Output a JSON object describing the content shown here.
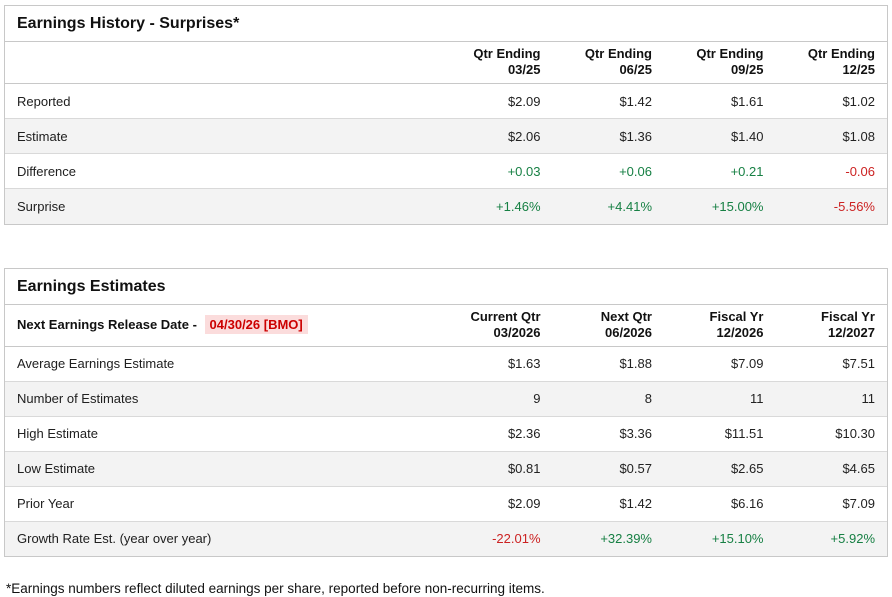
{
  "colors": {
    "positive_green": "#178044",
    "negative_red": "#cc2222",
    "release_date_red": "#cc0000",
    "release_date_bg": "#fbdcdc",
    "striped_row_bg": "#f3f3f3",
    "table_border": "#c8c8c8"
  },
  "earnings_history": {
    "title": "Earnings History - Surprises*",
    "columns": [
      {
        "line1": "Qtr Ending",
        "line2": "03/25"
      },
      {
        "line1": "Qtr Ending",
        "line2": "06/25"
      },
      {
        "line1": "Qtr Ending",
        "line2": "09/25"
      },
      {
        "line1": "Qtr Ending",
        "line2": "12/25"
      }
    ],
    "rows": [
      {
        "label": "Reported",
        "values": [
          "$2.09",
          "$1.42",
          "$1.61",
          "$1.02"
        ],
        "styles": [
          "",
          "",
          "",
          ""
        ]
      },
      {
        "label": "Estimate",
        "values": [
          "$2.06",
          "$1.36",
          "$1.40",
          "$1.08"
        ],
        "styles": [
          "",
          "",
          "",
          ""
        ]
      },
      {
        "label": "Difference",
        "values": [
          "+0.03",
          "+0.06",
          "+0.21",
          "-0.06"
        ],
        "styles": [
          "pos",
          "pos",
          "pos",
          "neg"
        ]
      },
      {
        "label": "Surprise",
        "values": [
          "+1.46%",
          "+4.41%",
          "+15.00%",
          "-5.56%"
        ],
        "styles": [
          "pos",
          "pos",
          "pos",
          "neg"
        ]
      }
    ]
  },
  "earnings_estimates": {
    "title": "Earnings Estimates",
    "release_label": "Next Earnings Release Date - ",
    "release_date": "04/30/26 [BMO]",
    "columns": [
      {
        "line1": "Current Qtr",
        "line2": "03/2026"
      },
      {
        "line1": "Next Qtr",
        "line2": "06/2026"
      },
      {
        "line1": "Fiscal Yr",
        "line2": "12/2026"
      },
      {
        "line1": "Fiscal Yr",
        "line2": "12/2027"
      }
    ],
    "rows": [
      {
        "label": "Average Earnings Estimate",
        "values": [
          "$1.63",
          "$1.88",
          "$7.09",
          "$7.51"
        ],
        "styles": [
          "",
          "",
          "",
          ""
        ]
      },
      {
        "label": "Number of Estimates",
        "values": [
          "9",
          "8",
          "11",
          "11"
        ],
        "styles": [
          "",
          "",
          "",
          ""
        ]
      },
      {
        "label": "High Estimate",
        "values": [
          "$2.36",
          "$3.36",
          "$11.51",
          "$10.30"
        ],
        "styles": [
          "",
          "",
          "",
          ""
        ]
      },
      {
        "label": "Low Estimate",
        "values": [
          "$0.81",
          "$0.57",
          "$2.65",
          "$4.65"
        ],
        "styles": [
          "",
          "",
          "",
          ""
        ]
      },
      {
        "label": "Prior Year",
        "values": [
          "$2.09",
          "$1.42",
          "$6.16",
          "$7.09"
        ],
        "styles": [
          "",
          "",
          "",
          ""
        ]
      },
      {
        "label": "Growth Rate Est. (year over year)",
        "values": [
          "-22.01%",
          "+32.39%",
          "+15.10%",
          "+5.92%"
        ],
        "styles": [
          "neg",
          "pos",
          "pos",
          "pos"
        ]
      }
    ]
  },
  "footnote": "*Earnings numbers reflect diluted earnings per share, reported before non-recurring items."
}
